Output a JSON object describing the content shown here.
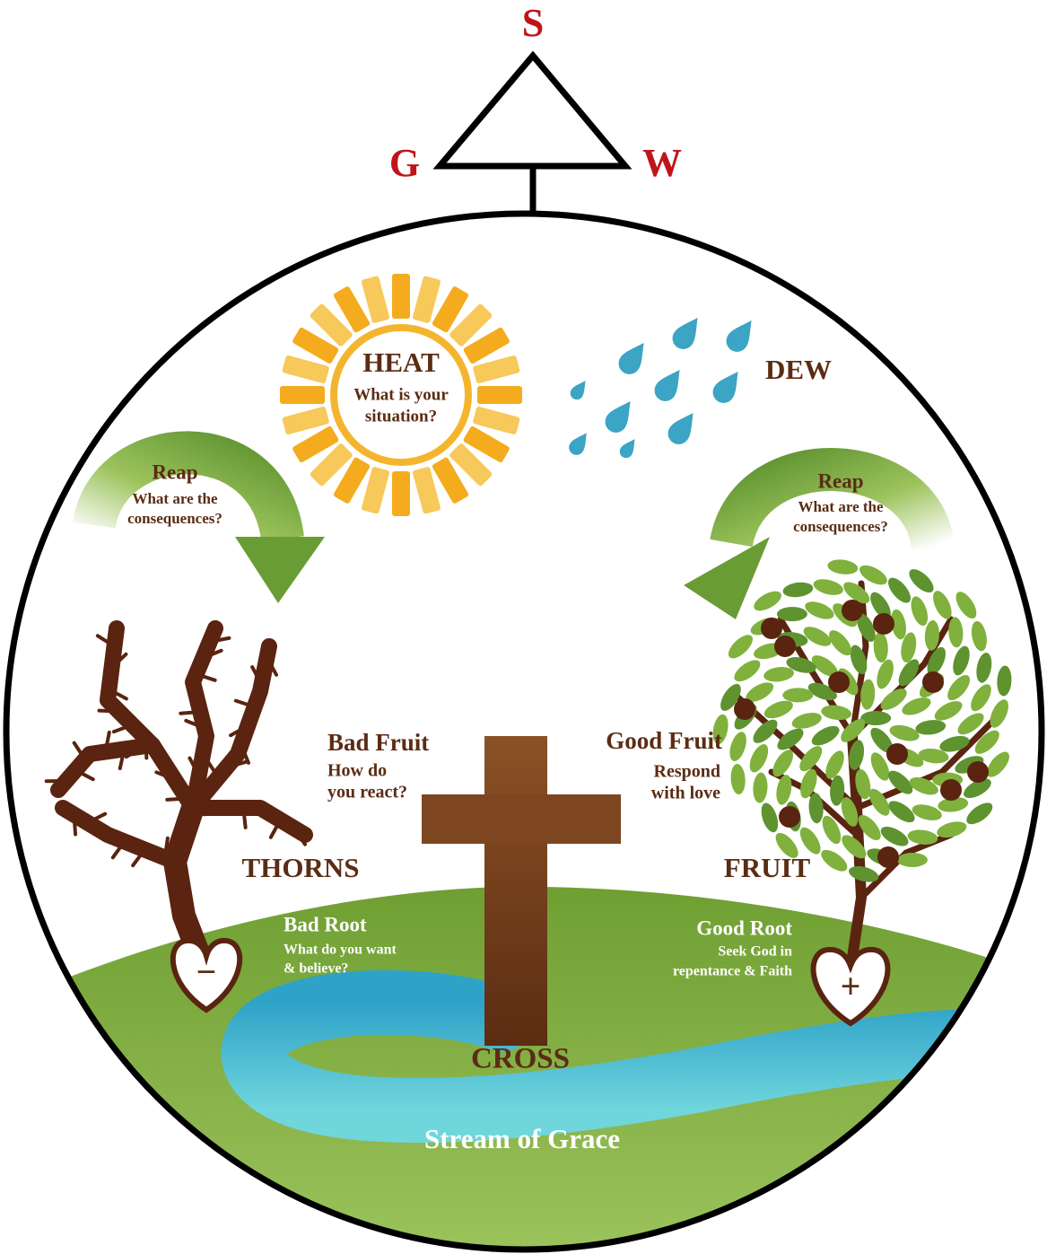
{
  "compass": {
    "top": "S",
    "left": "G",
    "right": "W"
  },
  "heat": {
    "title": "HEAT",
    "lines": [
      "What is your",
      "situation?"
    ]
  },
  "dew": {
    "title": "DEW"
  },
  "reap_left": {
    "title": "Reap",
    "lines": [
      "What are the",
      "consequences?"
    ]
  },
  "reap_right": {
    "title": "Reap",
    "lines": [
      "What are the",
      "consequences?"
    ]
  },
  "bad_fruit": {
    "title": "Bad Fruit",
    "lines": [
      "How do",
      "you react?"
    ]
  },
  "good_fruit": {
    "title": "Good Fruit",
    "lines": [
      "Respond",
      "with love"
    ]
  },
  "thorns": {
    "title": "THORNS"
  },
  "fruit": {
    "title": "FRUIT"
  },
  "bad_root": {
    "title": "Bad Root",
    "lines": [
      "What do you want",
      "& believe?"
    ],
    "sign": "−"
  },
  "good_root": {
    "title": "Good Root",
    "lines": [
      "Seek God in",
      "repentance & Faith"
    ],
    "sign": "+"
  },
  "cross": {
    "title": "CROSS"
  },
  "stream": {
    "title": "Stream of Grace"
  }
}
